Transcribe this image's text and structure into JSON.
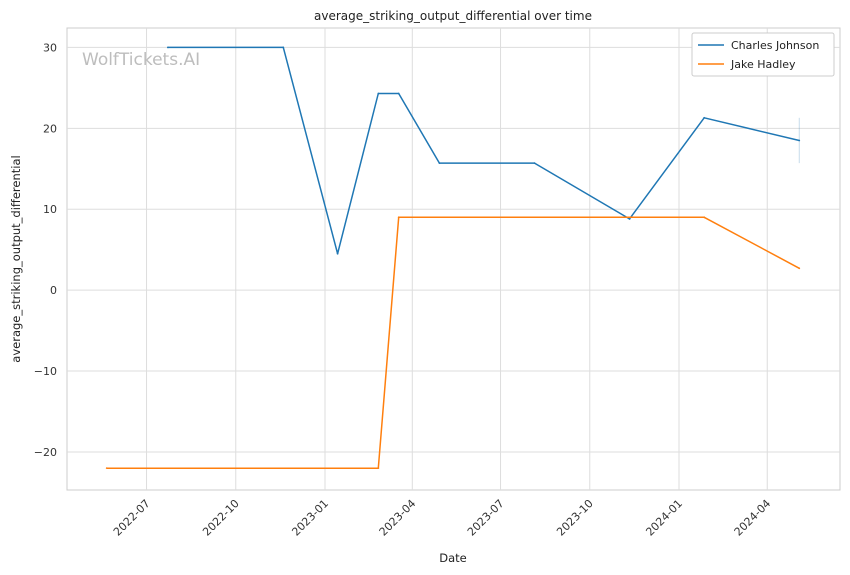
{
  "chart_data": {
    "type": "line",
    "title": "average_striking_output_differential over time",
    "xlabel": "Date",
    "ylabel": "average_striking_output_differential",
    "watermark": "WolfTickets.AI",
    "x_axis": {
      "type": "date",
      "range": [
        "2022-04-10",
        "2024-06-15"
      ],
      "ticks": [
        {
          "date": "2022-07-01",
          "label": "2022-07"
        },
        {
          "date": "2022-10-01",
          "label": "2022-10"
        },
        {
          "date": "2023-01-01",
          "label": "2023-01"
        },
        {
          "date": "2023-04-01",
          "label": "2023-04"
        },
        {
          "date": "2023-07-01",
          "label": "2023-07"
        },
        {
          "date": "2023-10-01",
          "label": "2023-10"
        },
        {
          "date": "2024-01-01",
          "label": "2024-01"
        },
        {
          "date": "2024-04-01",
          "label": "2024-04"
        }
      ]
    },
    "y_axis": {
      "range": [
        -24.7,
        32.4
      ],
      "ticks": [
        {
          "value": 30,
          "label": "30"
        },
        {
          "value": 20,
          "label": "20"
        },
        {
          "value": 10,
          "label": "10"
        },
        {
          "value": 0,
          "label": "0"
        },
        {
          "value": -10,
          "label": "−10"
        },
        {
          "value": -20,
          "label": "−20"
        }
      ]
    },
    "grid": true,
    "legend": {
      "placement": "top-right"
    },
    "series": [
      {
        "name": "Charles Johnson",
        "color": "#1f77b4",
        "points": [
          {
            "x": "2022-07-23",
            "y": 30.0
          },
          {
            "x": "2022-11-19",
            "y": 30.0
          },
          {
            "x": "2023-01-14",
            "y": 4.5
          },
          {
            "x": "2023-02-25",
            "y": 24.3
          },
          {
            "x": "2023-03-18",
            "y": 24.3
          },
          {
            "x": "2023-04-29",
            "y": 15.7
          },
          {
            "x": "2023-08-05",
            "y": 15.7
          },
          {
            "x": "2023-11-11",
            "y": 8.8
          },
          {
            "x": "2024-01-27",
            "y": 21.3
          },
          {
            "x": "2024-05-04",
            "y": 18.5
          }
        ]
      },
      {
        "name": "Jake Hadley",
        "color": "#ff7f0e",
        "points": [
          {
            "x": "2022-05-21",
            "y": -22.0
          },
          {
            "x": "2023-02-25",
            "y": -22.0
          },
          {
            "x": "2023-03-18",
            "y": 9.0
          },
          {
            "x": "2024-01-27",
            "y": 9.0
          },
          {
            "x": "2024-05-04",
            "y": 2.7
          }
        ]
      }
    ]
  }
}
